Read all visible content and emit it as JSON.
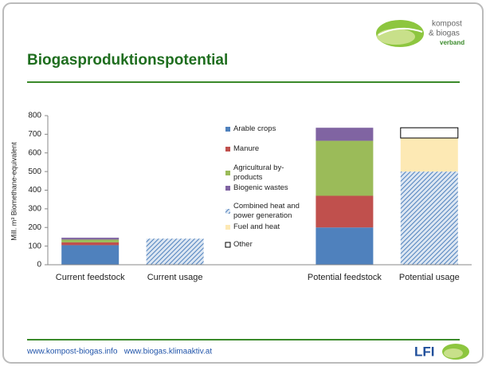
{
  "header": {
    "title": "Biogasproduktionspotential",
    "logo": [
      "kompost",
      "& biogas",
      "verband"
    ]
  },
  "footer": {
    "links": "www.kompost-biogas.info   www.biogas.klimaaktiv.at",
    "logo": "LFI"
  },
  "chart_data": {
    "type": "stacked_bar",
    "y_label": "Mill. m³ Biomethane-equivalent",
    "categories": [
      "Current feedstock",
      "Current usage",
      null,
      "Potential feedstock",
      "Potential usage"
    ],
    "series": [
      {
        "name": "Arable crops",
        "color": "#4f81bd",
        "values": [
          105,
          null,
          null,
          200,
          null
        ]
      },
      {
        "name": "Manure",
        "color": "#c0504d",
        "values": [
          15,
          null,
          null,
          170,
          null
        ]
      },
      {
        "name": "Agricultural by-products",
        "color": "#9bbb59",
        "values": [
          15,
          null,
          null,
          295,
          null
        ]
      },
      {
        "name": "Biogenic wastes",
        "color": "#8064a2",
        "values": [
          10,
          null,
          null,
          70,
          null
        ]
      },
      {
        "name": "Combined heat and power generation",
        "color": "#4f81bd",
        "hatch": true,
        "values": [
          null,
          140,
          null,
          null,
          500
        ]
      },
      {
        "name": "Fuel and heat",
        "color": "#fde9b4",
        "values": [
          null,
          null,
          null,
          null,
          180
        ]
      },
      {
        "name": "Other",
        "color": "#ffffff",
        "values": [
          null,
          null,
          null,
          null,
          55
        ]
      }
    ],
    "ylim": [
      0,
      800
    ],
    "yticks": [
      0,
      100,
      200,
      300,
      400,
      500,
      600,
      700,
      800
    ]
  }
}
